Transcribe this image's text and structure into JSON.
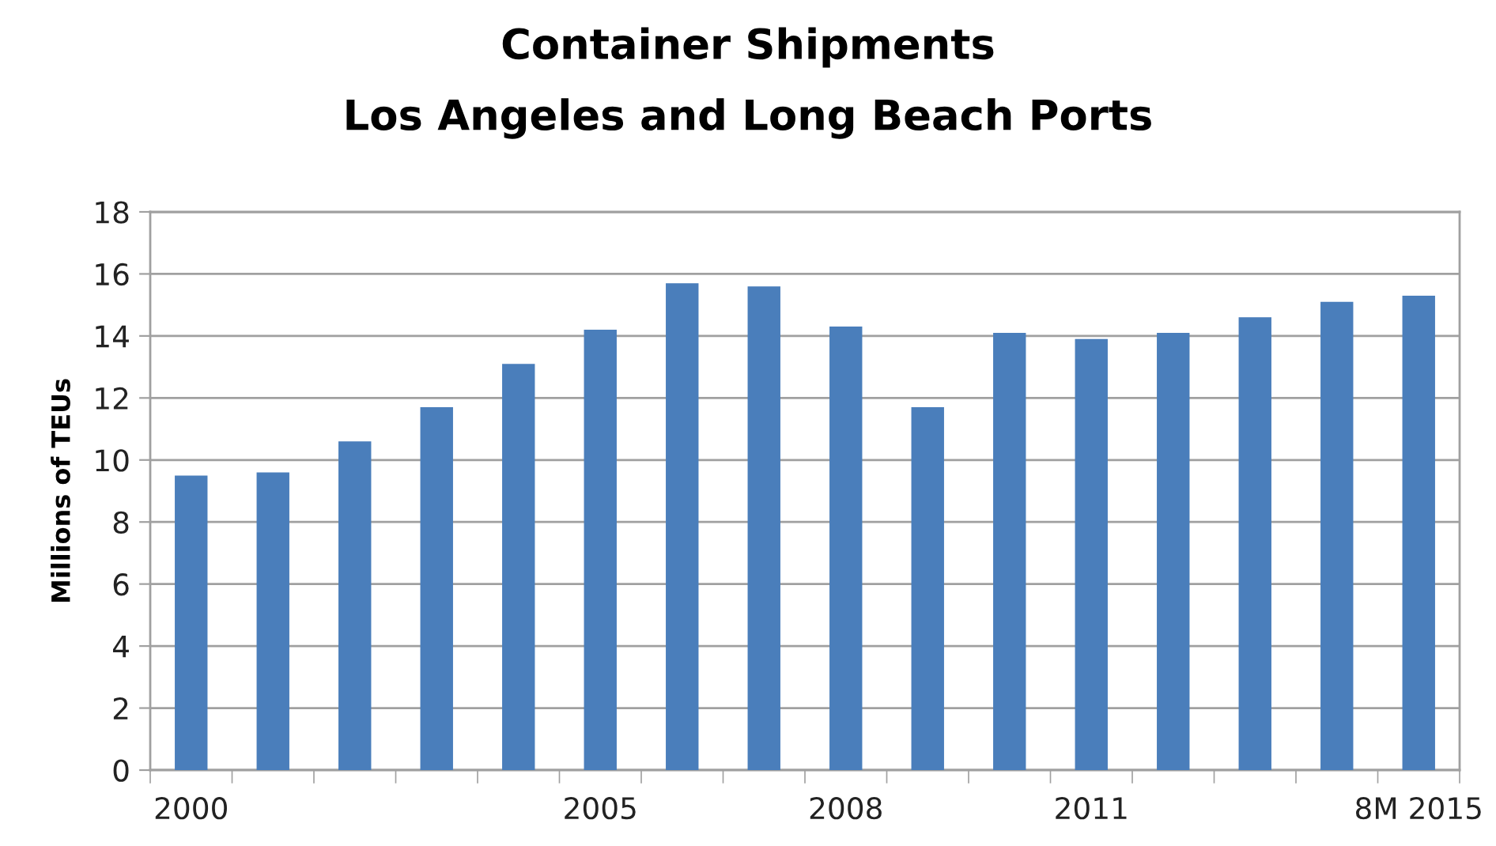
{
  "chart_data": {
    "type": "bar",
    "title": "Container Shipments",
    "subtitle": "Los Angeles and Long Beach Ports",
    "ylabel": "Millions of TEUs",
    "categories": [
      "2000",
      null,
      null,
      null,
      null,
      "2005",
      null,
      null,
      "2008",
      null,
      null,
      "2011",
      null,
      null,
      null,
      "8M 2015"
    ],
    "values": [
      9.5,
      9.6,
      10.6,
      11.7,
      13.1,
      14.2,
      15.7,
      15.6,
      14.3,
      11.7,
      14.1,
      13.9,
      14.1,
      14.6,
      15.1,
      15.3
    ],
    "color": "#4a7ebb",
    "ylim": [
      0,
      18
    ],
    "yticks": [
      0,
      2,
      4,
      6,
      8,
      10,
      12,
      14,
      16,
      18
    ],
    "grid": "y",
    "legend": false
  }
}
